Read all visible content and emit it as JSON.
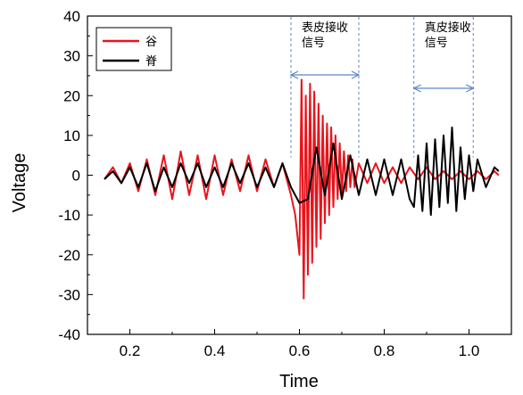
{
  "chart_data": {
    "type": "line",
    "xlabel": "Time",
    "ylabel": "Voltage",
    "xlim": [
      0.1,
      1.1
    ],
    "ylim": [
      -40,
      40
    ],
    "xticks": [
      "0.2",
      "0.4",
      "0.6",
      "0.8",
      "1.0"
    ],
    "yticks": [
      "40",
      "30",
      "20",
      "10",
      "0",
      "-10",
      "-20",
      "-30",
      "-40"
    ],
    "grid": false,
    "legend_position": "top-left",
    "series": [
      {
        "name": "谷",
        "color": "#e8141c",
        "x": [
          0.14,
          0.16,
          0.18,
          0.2,
          0.22,
          0.24,
          0.26,
          0.28,
          0.3,
          0.32,
          0.34,
          0.36,
          0.38,
          0.4,
          0.42,
          0.44,
          0.46,
          0.48,
          0.5,
          0.52,
          0.54,
          0.56,
          0.58,
          0.59,
          0.6,
          0.605,
          0.61,
          0.615,
          0.62,
          0.625,
          0.63,
          0.635,
          0.64,
          0.645,
          0.65,
          0.655,
          0.66,
          0.665,
          0.67,
          0.675,
          0.68,
          0.685,
          0.69,
          0.695,
          0.7,
          0.705,
          0.71,
          0.715,
          0.72,
          0.725,
          0.73,
          0.74,
          0.76,
          0.78,
          0.8,
          0.82,
          0.84,
          0.86,
          0.88,
          0.9,
          0.92,
          0.94,
          0.96,
          0.98,
          1.0,
          1.02,
          1.04,
          1.06,
          1.07
        ],
        "y": [
          -1,
          2,
          -2,
          3,
          -4,
          4,
          -5,
          5,
          -6,
          6,
          -5,
          5,
          -6,
          5,
          -5,
          4,
          -4,
          5,
          -4,
          4,
          -3,
          3,
          -5,
          -10,
          -20,
          24,
          -31,
          20,
          -25,
          23,
          -22,
          21,
          -18,
          18,
          -16,
          15,
          -12,
          13,
          -10,
          12,
          -8,
          10,
          -6,
          8,
          -5,
          6,
          -4,
          5,
          -3,
          4,
          -3,
          3,
          -2,
          3,
          -2,
          2,
          -2,
          2,
          -1,
          2,
          -1,
          1,
          -1,
          1,
          -1,
          1,
          -1,
          1,
          0
        ]
      },
      {
        "name": "脊",
        "color": "#000000",
        "x": [
          0.14,
          0.16,
          0.18,
          0.2,
          0.22,
          0.24,
          0.26,
          0.28,
          0.3,
          0.32,
          0.34,
          0.36,
          0.38,
          0.4,
          0.42,
          0.44,
          0.46,
          0.48,
          0.5,
          0.52,
          0.54,
          0.56,
          0.58,
          0.6,
          0.62,
          0.64,
          0.66,
          0.68,
          0.7,
          0.72,
          0.74,
          0.76,
          0.78,
          0.8,
          0.82,
          0.84,
          0.86,
          0.87,
          0.88,
          0.89,
          0.9,
          0.91,
          0.92,
          0.93,
          0.94,
          0.95,
          0.96,
          0.97,
          0.98,
          0.99,
          1.0,
          1.01,
          1.02,
          1.04,
          1.06,
          1.07
        ],
        "y": [
          -1,
          1,
          -2,
          2,
          -3,
          3,
          -4,
          2,
          -3,
          3,
          -2,
          3,
          -3,
          2,
          -3,
          3,
          -2,
          3,
          -3,
          2,
          -3,
          3,
          -3,
          -7,
          -6,
          7,
          -5,
          8,
          -6,
          5,
          -5,
          4,
          -5,
          4,
          -5,
          4,
          -6,
          -8,
          5,
          -9,
          8,
          -10,
          9,
          -8,
          10,
          -7,
          12,
          -9,
          7,
          -6,
          5,
          -4,
          4,
          -3,
          2,
          1
        ]
      }
    ],
    "annotations": [
      {
        "line1": "表皮接收",
        "line2": "信号",
        "x_start": 0.58,
        "x_end": 0.74
      },
      {
        "line1": "真皮接收",
        "line2": "信号",
        "x_start": 0.87,
        "x_end": 1.01
      }
    ]
  }
}
